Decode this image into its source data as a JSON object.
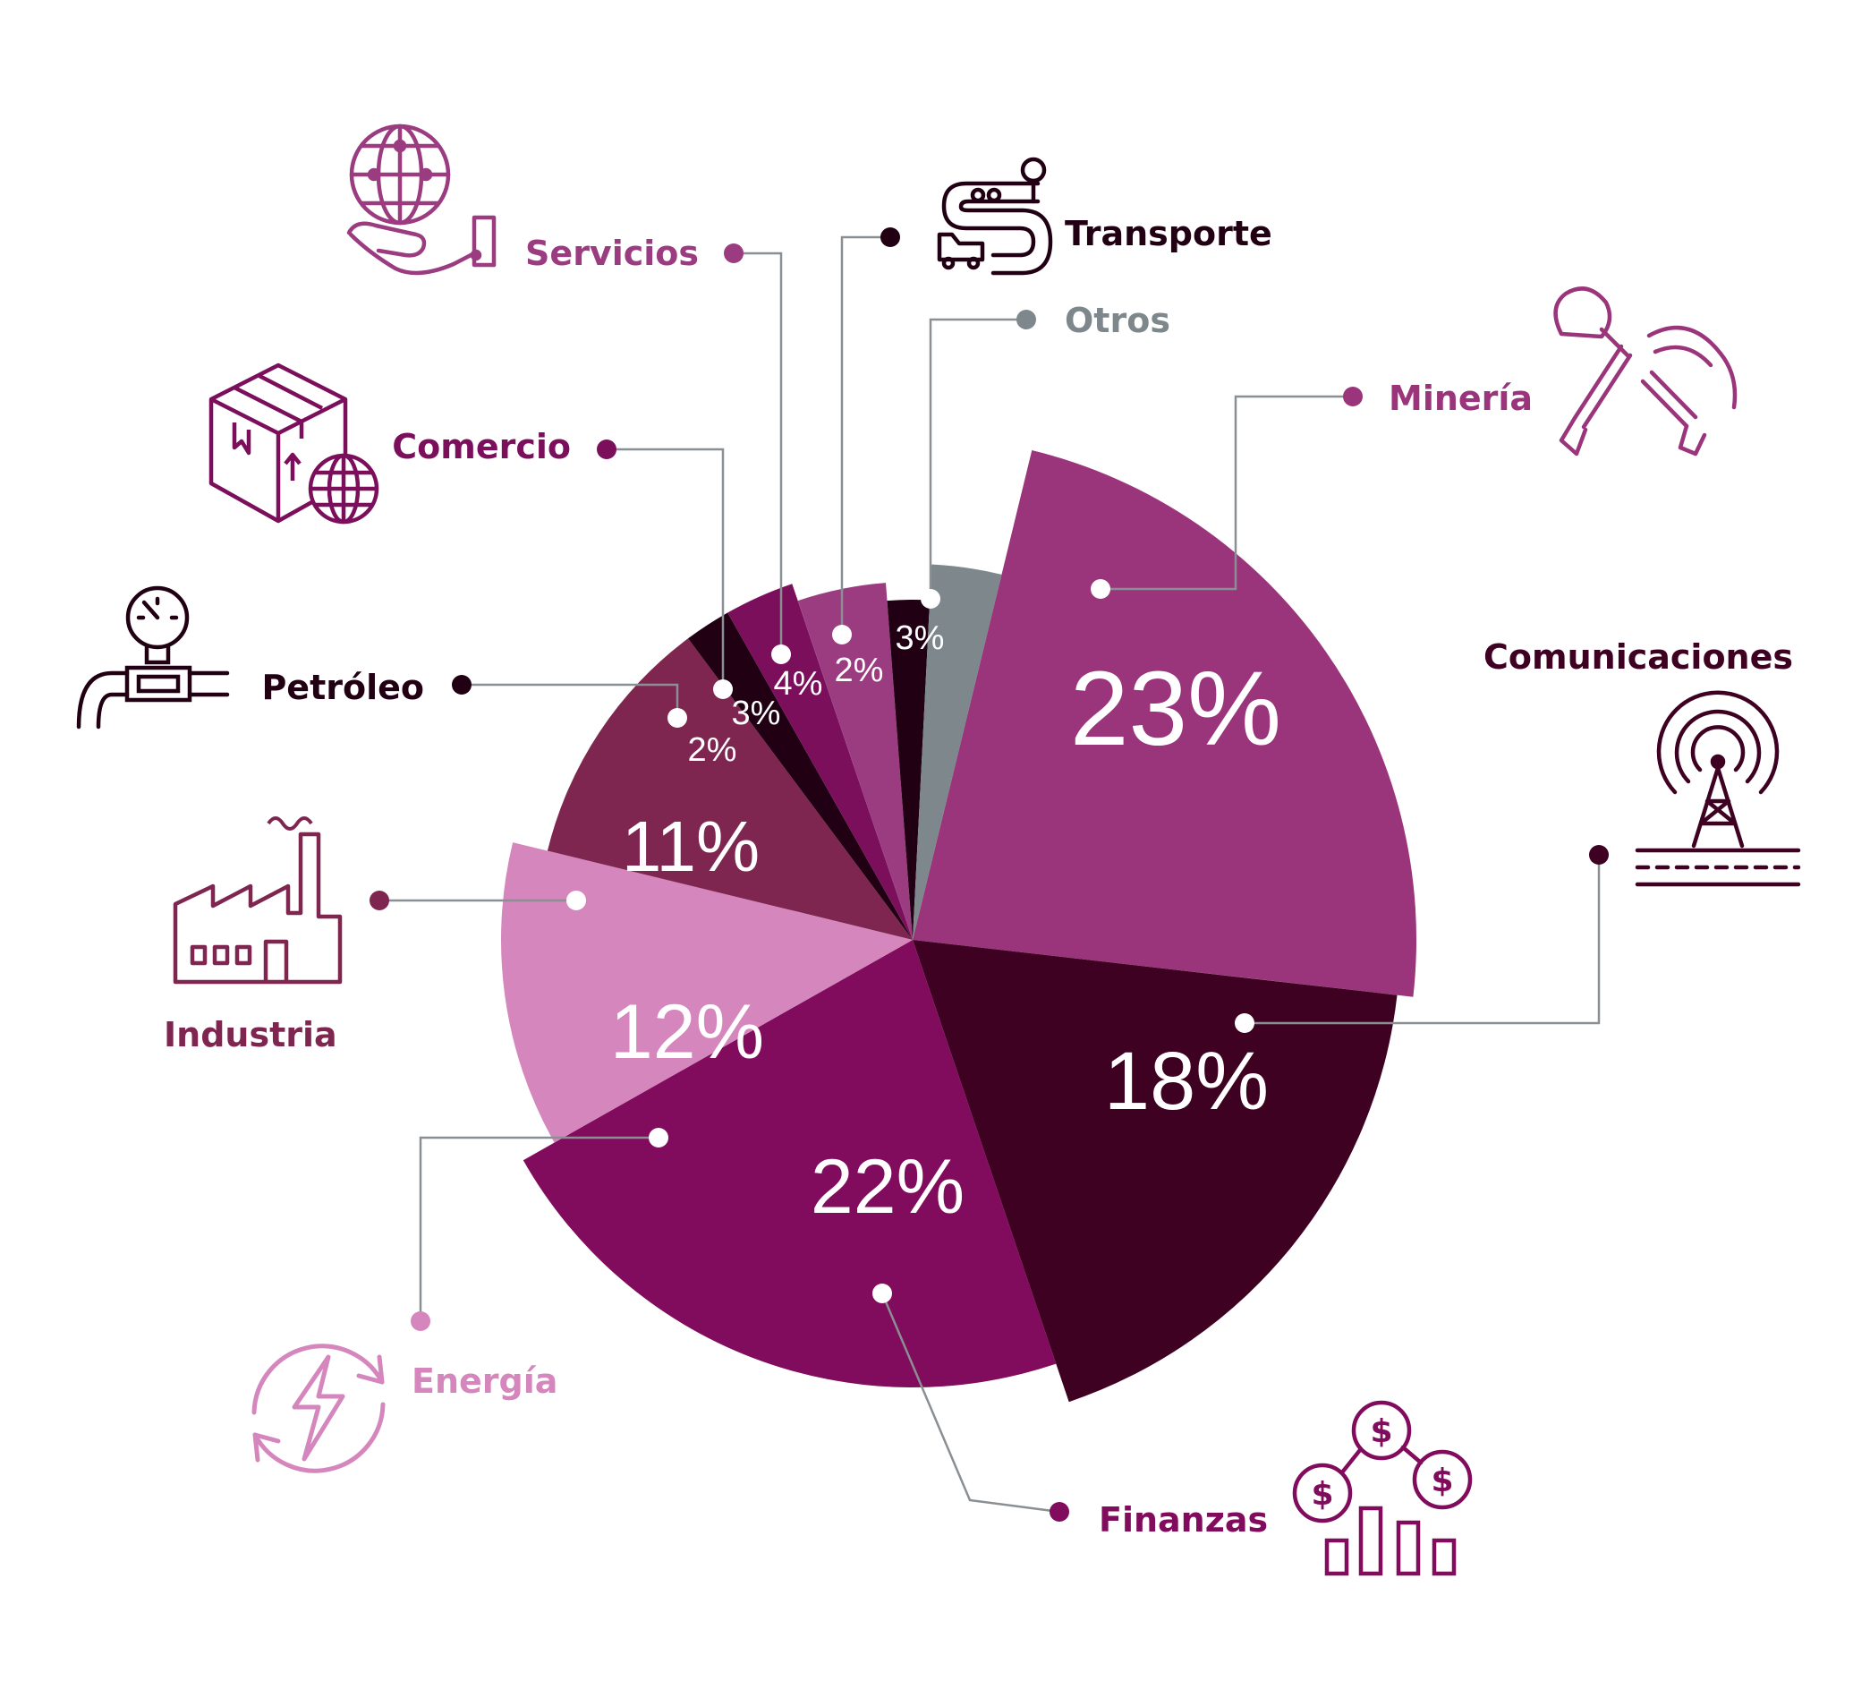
{
  "colors": {
    "background": "#ffffff",
    "leader": "#8a8f94",
    "marker": "#ffffff"
  },
  "chart_data": {
    "type": "pie",
    "slices": [
      {
        "name": "Minería",
        "value": 23,
        "label": "23%",
        "color": "#9b357b",
        "label_color": "#9b357b",
        "icon": "pickaxe-shovel-icon"
      },
      {
        "name": "Comunicaciones",
        "value": 18,
        "label": "18%",
        "color": "#3e0121",
        "label_color": "#3e0121",
        "icon": "radio-tower-icon"
      },
      {
        "name": "Finanzas",
        "value": 22,
        "label": "22%",
        "color": "#810b5c",
        "label_color": "#810b5c",
        "icon": "finance-network-icon"
      },
      {
        "name": "Energía",
        "value": 12,
        "label": "12%",
        "color": "#d486bd",
        "label_color": "#d486bd",
        "icon": "renewable-energy-icon"
      },
      {
        "name": "Industria",
        "value": 11,
        "label": "11%",
        "color": "#7e2650",
        "label_color": "#7e2650",
        "icon": "factory-icon"
      },
      {
        "name": "Petróleo",
        "value": 2,
        "label": "2%",
        "color": "#200012",
        "label_color": "#200012",
        "icon": "oil-pipeline-icon"
      },
      {
        "name": "Comercio",
        "value": 3,
        "label": "3%",
        "color": "#7b0f5c",
        "label_color": "#7b0f5c",
        "icon": "box-globe-icon"
      },
      {
        "name": "Servicios",
        "value": 4,
        "label": "4%",
        "color": "#9b3b80",
        "label_color": "#9b3b80",
        "icon": "hand-globe-icon"
      },
      {
        "name": "Transporte",
        "value": 2,
        "label": "2%",
        "color": "#200012",
        "label_color": "#200012",
        "icon": "truck-route-icon"
      },
      {
        "name": "Otros",
        "value": 3,
        "label": "3%",
        "color": "#7d878c",
        "label_color": "#7d878c",
        "icon": ""
      }
    ]
  }
}
